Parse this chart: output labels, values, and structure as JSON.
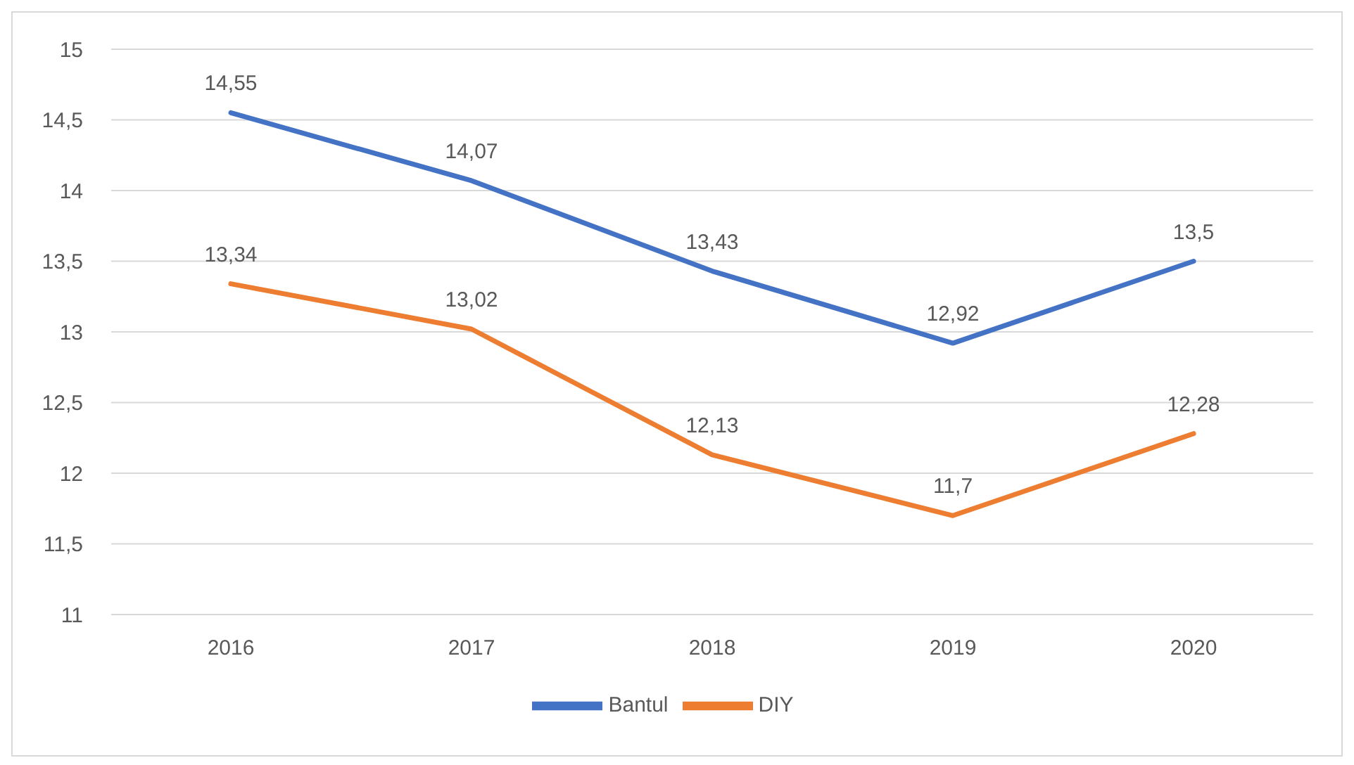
{
  "chart_data": {
    "type": "line",
    "categories": [
      "2016",
      "2017",
      "2018",
      "2019",
      "2020"
    ],
    "series": [
      {
        "name": "Bantul",
        "color": "#4472c4",
        "values": [
          14.55,
          14.07,
          13.43,
          12.92,
          13.5
        ],
        "value_labels": [
          "14,55",
          "14,07",
          "13,43",
          "12,92",
          "13,5"
        ]
      },
      {
        "name": "DIY",
        "color": "#ed7d31",
        "values": [
          13.34,
          13.02,
          12.13,
          11.7,
          12.28
        ],
        "value_labels": [
          "13,34",
          "13,02",
          "12,13",
          "11,7",
          "12,28"
        ]
      }
    ],
    "ylim": [
      11,
      15
    ],
    "yticks": [
      {
        "value": 11,
        "label": "11"
      },
      {
        "value": 11.5,
        "label": "11,5"
      },
      {
        "value": 12,
        "label": "12"
      },
      {
        "value": 12.5,
        "label": "12,5"
      },
      {
        "value": 13,
        "label": "13"
      },
      {
        "value": 13.5,
        "label": "13,5"
      },
      {
        "value": 14,
        "label": "14"
      },
      {
        "value": 14.5,
        "label": "14,5"
      },
      {
        "value": 15,
        "label": "15"
      }
    ],
    "grid": "y",
    "legend": "bottom",
    "marker": "none",
    "line_style": "solid"
  }
}
